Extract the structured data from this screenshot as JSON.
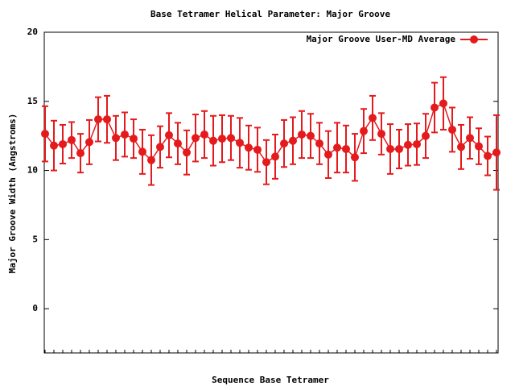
{
  "chart_data": {
    "type": "line",
    "title": "Base Tetramer Helical Parameter: Major Groove",
    "x_label": "Sequence Base Tetramer",
    "y_label": "Major Groove Width (Angstroms)",
    "categories": [
      null,
      null,
      null,
      null,
      null,
      null,
      null,
      null,
      null,
      null,
      null,
      null,
      null,
      null,
      null,
      null,
      null,
      null,
      null,
      null,
      null,
      null,
      null,
      null,
      null,
      null,
      null,
      null,
      null,
      null,
      null,
      null,
      null,
      null,
      null,
      null,
      null,
      null,
      null,
      null,
      null,
      null,
      null,
      null,
      null,
      null,
      null,
      null,
      null,
      null,
      null,
      null
    ],
    "series": [
      {
        "name": "Major Groove User-MD Average",
        "color": "#e41a1c",
        "values": [
          12.65,
          11.8,
          11.9,
          12.2,
          11.25,
          12.05,
          13.7,
          13.7,
          12.35,
          12.6,
          12.3,
          11.35,
          10.75,
          11.7,
          12.55,
          11.95,
          11.3,
          12.35,
          12.6,
          12.15,
          12.3,
          12.35,
          12.0,
          11.65,
          11.5,
          10.6,
          11.0,
          11.95,
          12.15,
          12.6,
          12.5,
          11.95,
          11.15,
          11.65,
          11.55,
          10.95,
          12.85,
          13.8,
          12.65,
          11.55,
          11.55,
          11.85,
          11.9,
          12.5,
          14.55,
          14.85,
          12.95,
          11.7,
          12.35,
          11.75,
          11.05,
          11.3
        ],
        "errors": [
          2.0,
          1.8,
          1.4,
          1.3,
          1.4,
          1.6,
          1.6,
          1.7,
          1.6,
          1.6,
          1.4,
          1.6,
          1.8,
          1.5,
          1.6,
          1.5,
          1.6,
          1.7,
          1.7,
          1.8,
          1.7,
          1.6,
          1.8,
          1.6,
          1.6,
          1.6,
          1.6,
          1.7,
          1.7,
          1.7,
          1.6,
          1.5,
          1.7,
          1.8,
          1.7,
          1.7,
          1.6,
          1.6,
          1.5,
          1.8,
          1.4,
          1.5,
          1.5,
          1.6,
          1.8,
          1.9,
          1.6,
          1.6,
          1.5,
          1.3,
          1.4,
          2.7
        ]
      }
    ],
    "ylim": [
      -3.2,
      20
    ],
    "yticks": [
      0,
      5,
      10,
      15,
      20
    ],
    "legend": "top-right"
  }
}
